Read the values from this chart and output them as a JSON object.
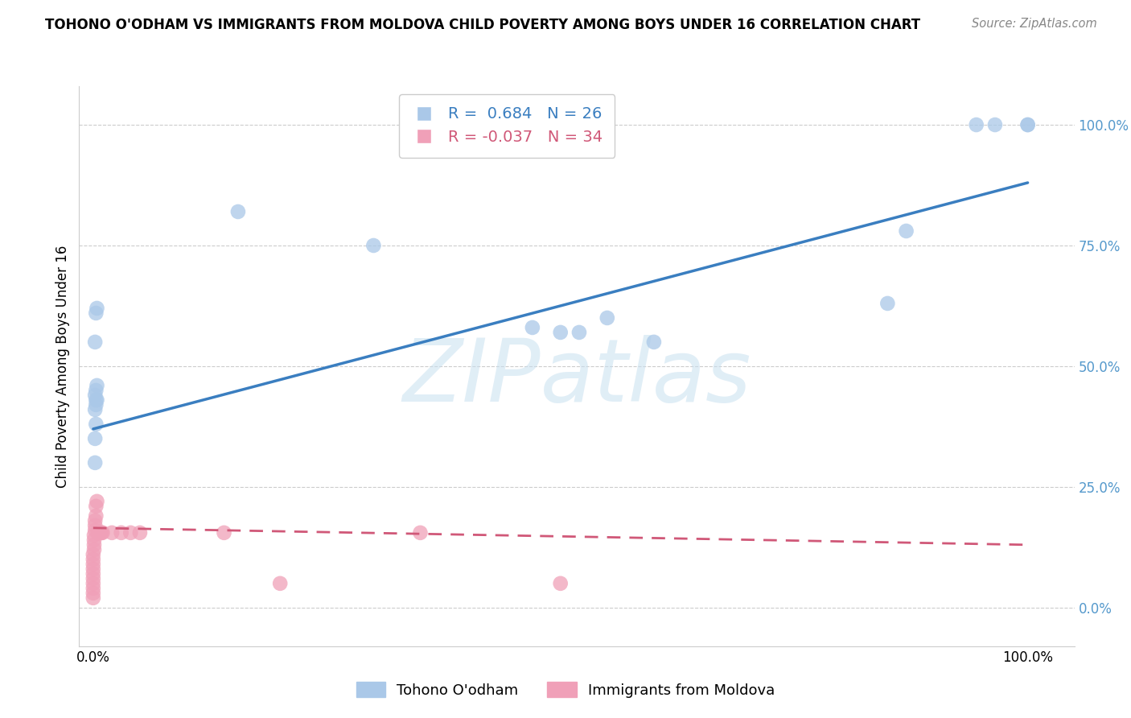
{
  "title": "TOHONO O'ODHAM VS IMMIGRANTS FROM MOLDOVA CHILD POVERTY AMONG BOYS UNDER 16 CORRELATION CHART",
  "source": "Source: ZipAtlas.com",
  "ylabel": "Child Poverty Among Boys Under 16",
  "background_color": "#ffffff",
  "watermark_text": "ZIPatlas",
  "legend_blue_r": "0.684",
  "legend_blue_n": "26",
  "legend_pink_r": "-0.037",
  "legend_pink_n": "34",
  "blue_color": "#aac8e8",
  "blue_line_color": "#3a7ec0",
  "pink_color": "#f0a0b8",
  "pink_line_color": "#d05878",
  "grid_color": "#cccccc",
  "tick_color": "#5599cc",
  "blue_x": [
    0.003,
    0.004,
    0.002,
    0.002,
    0.003,
    0.003,
    0.004,
    0.004,
    0.002,
    0.003,
    0.003,
    0.002,
    0.002,
    0.155,
    0.3,
    0.47,
    0.5,
    0.52,
    0.55,
    0.6,
    0.85,
    0.87,
    0.945,
    0.965,
    1.0,
    1.0
  ],
  "blue_y": [
    0.61,
    0.62,
    0.55,
    0.44,
    0.45,
    0.42,
    0.43,
    0.46,
    0.41,
    0.43,
    0.38,
    0.35,
    0.3,
    0.82,
    0.75,
    0.58,
    0.57,
    0.57,
    0.6,
    0.55,
    0.63,
    0.78,
    1.0,
    1.0,
    1.0,
    1.0
  ],
  "pink_x": [
    0.0,
    0.0,
    0.0,
    0.0,
    0.0,
    0.0,
    0.0,
    0.0,
    0.0,
    0.0,
    0.001,
    0.001,
    0.001,
    0.001,
    0.002,
    0.002,
    0.002,
    0.003,
    0.003,
    0.004,
    0.005,
    0.006,
    0.007,
    0.008,
    0.009,
    0.01,
    0.02,
    0.03,
    0.04,
    0.05,
    0.14,
    0.2,
    0.35,
    0.5
  ],
  "pink_y": [
    0.02,
    0.03,
    0.04,
    0.05,
    0.06,
    0.07,
    0.08,
    0.09,
    0.1,
    0.11,
    0.12,
    0.13,
    0.14,
    0.15,
    0.16,
    0.17,
    0.18,
    0.19,
    0.21,
    0.22,
    0.155,
    0.155,
    0.155,
    0.155,
    0.155,
    0.155,
    0.155,
    0.155,
    0.155,
    0.155,
    0.155,
    0.05,
    0.155,
    0.05
  ],
  "blue_trend_x0": 0.0,
  "blue_trend_y0": 0.37,
  "blue_trend_x1": 1.0,
  "blue_trend_y1": 0.88,
  "pink_trend_x0": 0.0,
  "pink_trend_y0": 0.165,
  "pink_trend_x1": 1.0,
  "pink_trend_y1": 0.13,
  "xlim_min": -0.015,
  "xlim_max": 1.05,
  "ylim_min": -0.08,
  "ylim_max": 1.08
}
